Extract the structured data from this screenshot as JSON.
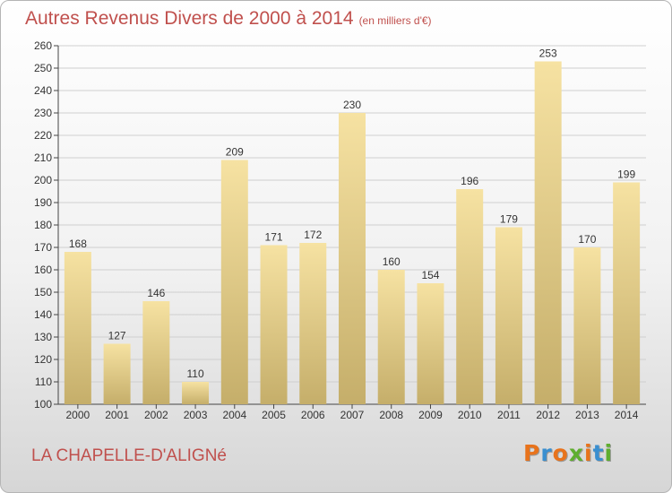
{
  "title": "Autres Revenus Divers de 2000 à 2014",
  "subtitle": "(en milliers d'€)",
  "location": "LA CHAPELLE-D'ALIGNé",
  "logo": {
    "text": "Proxiti",
    "letter_colors": [
      "#e8731c",
      "#3a8fd0",
      "#e8731c",
      "#5fae2f",
      "#e8731c",
      "#3a8fd0",
      "#5fae2f"
    ]
  },
  "colors": {
    "title": "#c0504d",
    "bar_light": "#f6e2a2",
    "bar_dark": "#c5ae6a",
    "grid": "#cfcfcf"
  },
  "chart_data": {
    "type": "bar",
    "title": "Autres Revenus Divers de 2000 à 2014",
    "subtitle": "(en milliers d'€)",
    "categories": [
      "2000",
      "2001",
      "2002",
      "2003",
      "2004",
      "2005",
      "2006",
      "2007",
      "2008",
      "2009",
      "2010",
      "2011",
      "2012",
      "2013",
      "2014"
    ],
    "values": [
      168,
      127,
      146,
      110,
      209,
      171,
      172,
      230,
      160,
      154,
      196,
      179,
      253,
      170,
      199
    ],
    "ylim": [
      100,
      260
    ],
    "ytick_step": 10,
    "grid": true,
    "data_labels": true
  }
}
